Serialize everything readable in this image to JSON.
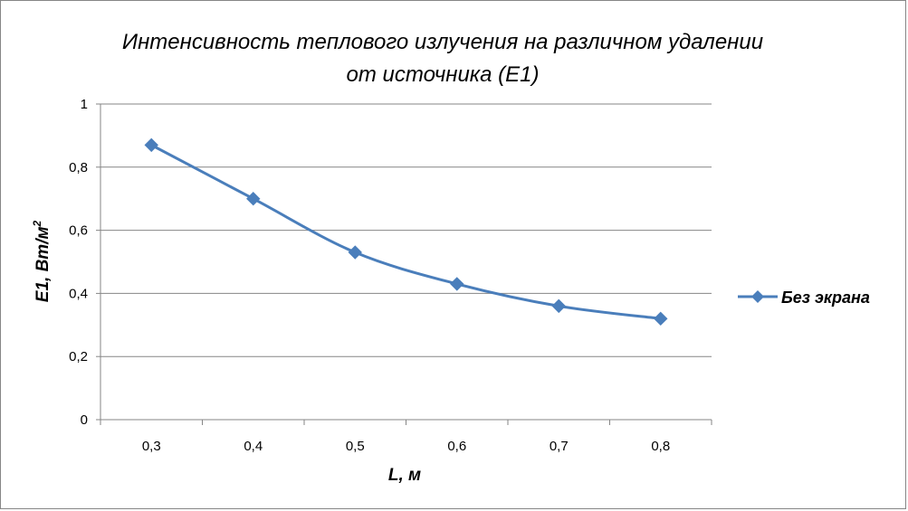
{
  "chart_data": {
    "type": "line",
    "title_lines": [
      "Интенсивность теплового излучения на различном удалении",
      "от источника (Е1)"
    ],
    "xlabel": "L, м",
    "ylabel_main": "Е1, Вт/м",
    "ylabel_sup": "2",
    "categories": [
      "0,3",
      "0,4",
      "0,5",
      "0,6",
      "0,7",
      "0,8"
    ],
    "y_ticks": [
      "0",
      "0,2",
      "0,4",
      "0,6",
      "0,8",
      "1"
    ],
    "ylim": [
      0,
      1
    ],
    "grid": "horizontal",
    "legend_position": "right",
    "series": [
      {
        "name": "Без экрана",
        "color": "#4a7ebb",
        "marker": "diamond",
        "values": [
          0.87,
          0.7,
          0.53,
          0.43,
          0.36,
          0.32
        ]
      }
    ]
  }
}
